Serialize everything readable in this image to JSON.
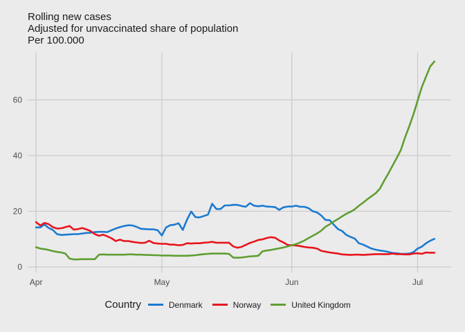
{
  "chart_data": {
    "type": "line",
    "title": "Rolling new cases",
    "subtitle_lines": [
      "Adjusted for unvaccinated share of population",
      "Per 100.000"
    ],
    "x_tick_labels": [
      "Apr",
      "May",
      "Jun",
      "Jul"
    ],
    "x_tick_days": [
      0,
      30,
      61,
      91
    ],
    "x_range_days": [
      -2,
      99
    ],
    "ylim": [
      -2,
      77
    ],
    "y_ticks": [
      0,
      20,
      40,
      60
    ],
    "grid": true,
    "legend_position": "bottom",
    "legend_title": "Country",
    "series": [
      {
        "name": "Denmark",
        "color": "#1b7ad1",
        "points": [
          [
            0,
            14.2
          ],
          [
            1,
            14.2
          ],
          [
            2,
            15.3
          ],
          [
            3,
            14.0
          ],
          [
            4,
            13.3
          ],
          [
            5,
            11.8
          ],
          [
            6,
            11.5
          ],
          [
            7,
            11.6
          ],
          [
            8,
            11.7
          ],
          [
            9,
            11.8
          ],
          [
            10,
            11.8
          ],
          [
            11,
            12.0
          ],
          [
            12,
            12.2
          ],
          [
            13,
            12.3
          ],
          [
            14,
            12.5
          ],
          [
            15,
            12.6
          ],
          [
            16,
            12.6
          ],
          [
            17,
            12.5
          ],
          [
            18,
            13.2
          ],
          [
            19,
            13.8
          ],
          [
            20,
            14.3
          ],
          [
            21,
            14.7
          ],
          [
            22,
            15.0
          ],
          [
            23,
            14.9
          ],
          [
            24,
            14.4
          ],
          [
            25,
            13.7
          ],
          [
            26,
            13.6
          ],
          [
            27,
            13.5
          ],
          [
            28,
            13.5
          ],
          [
            29,
            13.2
          ],
          [
            30,
            11.3
          ],
          [
            31,
            14.2
          ],
          [
            32,
            15.0
          ],
          [
            33,
            15.2
          ],
          [
            34,
            15.7
          ],
          [
            35,
            13.3
          ],
          [
            36,
            17.0
          ],
          [
            37,
            19.9
          ],
          [
            38,
            17.9
          ],
          [
            39,
            17.8
          ],
          [
            40,
            18.3
          ],
          [
            41,
            18.8
          ],
          [
            42,
            22.7
          ],
          [
            43,
            20.8
          ],
          [
            44,
            20.8
          ],
          [
            45,
            22.1
          ],
          [
            46,
            22.1
          ],
          [
            47,
            22.3
          ],
          [
            48,
            22.3
          ],
          [
            49,
            21.9
          ],
          [
            50,
            21.6
          ],
          [
            51,
            22.9
          ],
          [
            52,
            22.0
          ],
          [
            53,
            21.8
          ],
          [
            54,
            22.0
          ],
          [
            55,
            21.7
          ],
          [
            56,
            21.6
          ],
          [
            57,
            21.5
          ],
          [
            58,
            20.5
          ],
          [
            59,
            21.4
          ],
          [
            60,
            21.7
          ],
          [
            61,
            21.7
          ],
          [
            62,
            22.0
          ],
          [
            63,
            21.6
          ],
          [
            64,
            21.6
          ],
          [
            65,
            21.1
          ],
          [
            66,
            20.0
          ],
          [
            67,
            19.6
          ],
          [
            68,
            18.5
          ],
          [
            69,
            16.9
          ],
          [
            70,
            16.8
          ],
          [
            71,
            15.2
          ],
          [
            72,
            13.6
          ],
          [
            73,
            12.9
          ],
          [
            74,
            11.5
          ],
          [
            75,
            10.8
          ],
          [
            76,
            10.2
          ],
          [
            77,
            8.5
          ],
          [
            78,
            8.0
          ],
          [
            79,
            7.3
          ],
          [
            80,
            6.6
          ],
          [
            81,
            6.2
          ],
          [
            82,
            5.9
          ],
          [
            83,
            5.7
          ],
          [
            84,
            5.4
          ],
          [
            85,
            5.0
          ],
          [
            86,
            4.9
          ],
          [
            87,
            4.7
          ],
          [
            88,
            4.7
          ],
          [
            89,
            4.8
          ],
          [
            90,
            5.3
          ],
          [
            91,
            6.6
          ],
          [
            92,
            7.3
          ],
          [
            93,
            8.5
          ],
          [
            94,
            9.4
          ],
          [
            95,
            10.1
          ]
        ]
      },
      {
        "name": "Norway",
        "color": "#e8141c",
        "points": [
          [
            0,
            16.1
          ],
          [
            1,
            14.9
          ],
          [
            2,
            15.8
          ],
          [
            3,
            15.4
          ],
          [
            4,
            14.3
          ],
          [
            5,
            13.8
          ],
          [
            6,
            13.9
          ],
          [
            7,
            14.3
          ],
          [
            8,
            14.7
          ],
          [
            9,
            13.4
          ],
          [
            10,
            13.6
          ],
          [
            11,
            14.0
          ],
          [
            12,
            13.5
          ],
          [
            13,
            12.9
          ],
          [
            14,
            11.8
          ],
          [
            15,
            11.2
          ],
          [
            16,
            11.6
          ],
          [
            17,
            11.0
          ],
          [
            18,
            10.3
          ],
          [
            19,
            9.3
          ],
          [
            20,
            9.8
          ],
          [
            21,
            9.3
          ],
          [
            22,
            9.3
          ],
          [
            23,
            9.0
          ],
          [
            24,
            8.8
          ],
          [
            25,
            8.6
          ],
          [
            26,
            8.7
          ],
          [
            27,
            9.4
          ],
          [
            28,
            8.6
          ],
          [
            29,
            8.4
          ],
          [
            30,
            8.3
          ],
          [
            31,
            8.3
          ],
          [
            32,
            8.0
          ],
          [
            33,
            8.0
          ],
          [
            34,
            7.8
          ],
          [
            35,
            7.9
          ],
          [
            36,
            8.5
          ],
          [
            37,
            8.4
          ],
          [
            38,
            8.5
          ],
          [
            39,
            8.5
          ],
          [
            40,
            8.7
          ],
          [
            41,
            8.8
          ],
          [
            42,
            9.0
          ],
          [
            43,
            8.7
          ],
          [
            44,
            8.7
          ],
          [
            45,
            8.7
          ],
          [
            46,
            8.7
          ],
          [
            47,
            7.4
          ],
          [
            48,
            6.9
          ],
          [
            49,
            7.2
          ],
          [
            50,
            7.9
          ],
          [
            51,
            8.6
          ],
          [
            52,
            9.1
          ],
          [
            53,
            9.7
          ],
          [
            54,
            9.9
          ],
          [
            55,
            10.4
          ],
          [
            56,
            10.7
          ],
          [
            57,
            10.5
          ],
          [
            58,
            9.5
          ],
          [
            59,
            8.8
          ],
          [
            60,
            7.9
          ],
          [
            61,
            7.8
          ],
          [
            62,
            7.7
          ],
          [
            63,
            7.5
          ],
          [
            64,
            7.2
          ],
          [
            65,
            7.0
          ],
          [
            66,
            6.9
          ],
          [
            67,
            6.6
          ],
          [
            68,
            5.8
          ],
          [
            69,
            5.5
          ],
          [
            70,
            5.2
          ],
          [
            71,
            5.0
          ],
          [
            72,
            4.8
          ],
          [
            73,
            4.5
          ],
          [
            74,
            4.4
          ],
          [
            75,
            4.3
          ],
          [
            76,
            4.4
          ],
          [
            77,
            4.4
          ],
          [
            78,
            4.3
          ],
          [
            79,
            4.4
          ],
          [
            80,
            4.5
          ],
          [
            81,
            4.6
          ],
          [
            82,
            4.6
          ],
          [
            83,
            4.6
          ],
          [
            84,
            4.6
          ],
          [
            85,
            4.8
          ],
          [
            86,
            4.6
          ],
          [
            87,
            4.6
          ],
          [
            88,
            4.5
          ],
          [
            89,
            4.5
          ],
          [
            90,
            4.8
          ],
          [
            91,
            4.9
          ],
          [
            92,
            4.7
          ],
          [
            93,
            5.2
          ],
          [
            94,
            5.1
          ],
          [
            95,
            5.1
          ]
        ]
      },
      {
        "name": "United Kingdom",
        "color": "#5f9e32",
        "points": [
          [
            0,
            7.1
          ],
          [
            1,
            6.6
          ],
          [
            2,
            6.4
          ],
          [
            3,
            6.1
          ],
          [
            4,
            5.7
          ],
          [
            5,
            5.4
          ],
          [
            6,
            5.2
          ],
          [
            7,
            4.8
          ],
          [
            8,
            3.0
          ],
          [
            9,
            2.7
          ],
          [
            10,
            2.7
          ],
          [
            11,
            2.8
          ],
          [
            12,
            2.8
          ],
          [
            13,
            2.8
          ],
          [
            14,
            2.8
          ],
          [
            15,
            4.4
          ],
          [
            16,
            4.5
          ],
          [
            17,
            4.4
          ],
          [
            18,
            4.4
          ],
          [
            19,
            4.4
          ],
          [
            20,
            4.4
          ],
          [
            21,
            4.4
          ],
          [
            22,
            4.5
          ],
          [
            23,
            4.5
          ],
          [
            24,
            4.4
          ],
          [
            25,
            4.4
          ],
          [
            26,
            4.3
          ],
          [
            27,
            4.3
          ],
          [
            28,
            4.2
          ],
          [
            29,
            4.2
          ],
          [
            30,
            4.1
          ],
          [
            31,
            4.1
          ],
          [
            32,
            4.1
          ],
          [
            33,
            4.0
          ],
          [
            34,
            4.0
          ],
          [
            35,
            4.0
          ],
          [
            36,
            4.0
          ],
          [
            37,
            4.1
          ],
          [
            38,
            4.2
          ],
          [
            39,
            4.4
          ],
          [
            40,
            4.6
          ],
          [
            41,
            4.7
          ],
          [
            42,
            4.8
          ],
          [
            43,
            4.8
          ],
          [
            44,
            4.8
          ],
          [
            45,
            4.8
          ],
          [
            46,
            4.7
          ],
          [
            47,
            3.4
          ],
          [
            48,
            3.3
          ],
          [
            49,
            3.4
          ],
          [
            50,
            3.6
          ],
          [
            51,
            3.8
          ],
          [
            52,
            3.9
          ],
          [
            53,
            4.0
          ],
          [
            54,
            5.6
          ],
          [
            55,
            5.9
          ],
          [
            56,
            6.1
          ],
          [
            57,
            6.4
          ],
          [
            58,
            6.7
          ],
          [
            59,
            7.0
          ],
          [
            60,
            7.4
          ],
          [
            61,
            7.8
          ],
          [
            62,
            8.2
          ],
          [
            63,
            8.8
          ],
          [
            64,
            9.5
          ],
          [
            65,
            10.4
          ],
          [
            66,
            11.2
          ],
          [
            67,
            12.0
          ],
          [
            68,
            13.0
          ],
          [
            69,
            14.4
          ],
          [
            70,
            15.3
          ],
          [
            71,
            16.3
          ],
          [
            72,
            17.2
          ],
          [
            73,
            18.2
          ],
          [
            74,
            19.1
          ],
          [
            75,
            19.8
          ],
          [
            76,
            20.7
          ],
          [
            77,
            22.0
          ],
          [
            78,
            23.1
          ],
          [
            79,
            24.3
          ],
          [
            80,
            25.4
          ],
          [
            81,
            26.5
          ],
          [
            82,
            28.1
          ],
          [
            83,
            30.9
          ],
          [
            84,
            33.5
          ],
          [
            85,
            36.3
          ],
          [
            86,
            39.1
          ],
          [
            87,
            42.0
          ],
          [
            88,
            46.5
          ],
          [
            89,
            50.5
          ],
          [
            90,
            54.8
          ],
          [
            91,
            59.7
          ],
          [
            92,
            64.6
          ],
          [
            93,
            68.3
          ],
          [
            94,
            72.0
          ],
          [
            95,
            73.8
          ]
        ]
      }
    ]
  }
}
